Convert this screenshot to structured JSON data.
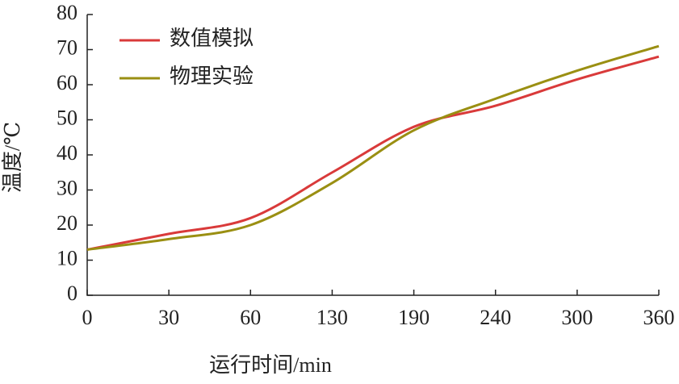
{
  "chart_data": {
    "type": "line",
    "categories": [
      "0",
      "30",
      "60",
      "130",
      "190",
      "240",
      "300",
      "360"
    ],
    "series": [
      {
        "name": "数值模拟",
        "color": "#d93a3a",
        "values": [
          13,
          17.5,
          22,
          35,
          48,
          54,
          61.5,
          68
        ]
      },
      {
        "name": "物理实验",
        "color": "#9a8f12",
        "values": [
          13,
          16,
          20,
          32,
          47,
          56,
          64,
          71
        ]
      }
    ],
    "xlabel": "运行时间/min",
    "ylabel": "温度/℃",
    "ylim": [
      0,
      80
    ],
    "yticks": [
      0,
      10,
      20,
      30,
      40,
      50,
      60,
      70,
      80
    ],
    "legend": "upper left",
    "grid": false
  }
}
